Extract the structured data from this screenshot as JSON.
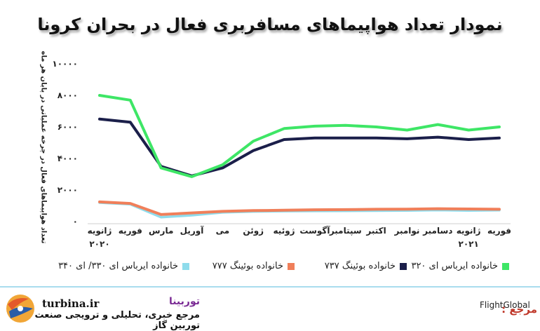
{
  "title": "نمودار تعداد هواپیماهای مسافربری فعال در بحران کرونا",
  "chart_data": {
    "type": "line",
    "ylabel": "تعداد هواپیماهای فعال در چرخه عملیاتی در پایان هر ماه",
    "ylim": [
      0,
      10000
    ],
    "yticks": [
      0,
      2000,
      4000,
      6000,
      8000,
      10000
    ],
    "ytick_labels": [
      "۰",
      "۲۰۰۰",
      "۴۰۰۰",
      "۶۰۰۰",
      "۸۰۰۰",
      "۱۰۰۰۰"
    ],
    "categories": [
      "ژانویه",
      "فوریه",
      "مارس",
      "آوریل",
      "می",
      "ژوئن",
      "ژوئیه",
      "آگوست",
      "سپتامبر",
      "اکتبر",
      "نوامبر",
      "دسامبر",
      "ژانویه",
      "فوریه"
    ],
    "year_labels": [
      {
        "index": 0,
        "text": "۲۰۲۰"
      },
      {
        "index": 12,
        "text": "۲۰۲۱"
      }
    ],
    "direction": "rtl",
    "grid": false,
    "legend_position": "bottom",
    "series": [
      {
        "name": "خانواده ایرباس ای ۳۲۰",
        "color": "#3ee666",
        "values": [
          8000,
          7700,
          3400,
          2850,
          3600,
          5100,
          5900,
          6050,
          6100,
          6000,
          5800,
          6150,
          5800,
          6000
        ]
      },
      {
        "name": "خانواده بوئینگ ۷۳۷",
        "color": "#1b1f4a",
        "values": [
          6500,
          6300,
          3500,
          2900,
          3400,
          4500,
          5200,
          5300,
          5300,
          5300,
          5250,
          5350,
          5200,
          5300
        ]
      },
      {
        "name": "خانواده بوئینگ ۷۷۷",
        "color": "#f07f5a",
        "values": [
          1250,
          1150,
          450,
          550,
          650,
          700,
          720,
          750,
          760,
          780,
          790,
          820,
          800,
          780
        ]
      },
      {
        "name": "خانواده ایرباس ای ۳۳۰/ ای ۳۴۰",
        "color": "#8fdcec",
        "values": [
          1200,
          1100,
          280,
          400,
          580,
          640,
          660,
          670,
          680,
          690,
          700,
          730,
          700,
          720
        ]
      }
    ]
  },
  "footer": {
    "brand_name": "توربینا",
    "brand_description": "مرجع خبری، تحلیلی و ترویجی صنعت توربین گاز",
    "site": "turbina.ir",
    "source_label": "مرجع :",
    "source_name": "FlightGlobal"
  },
  "colors": {
    "accent": "#7a2a94",
    "source": "#c0392b",
    "divider": "#a9dcee"
  }
}
